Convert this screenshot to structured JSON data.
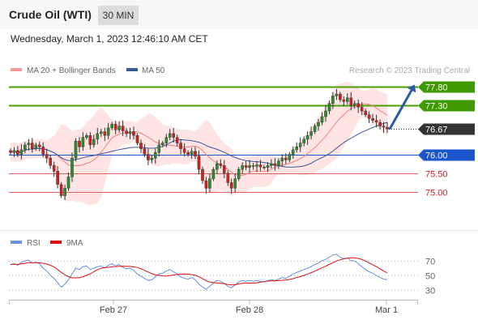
{
  "header": {
    "title": "Crude Oil (WTI)",
    "timeframe": "30 MIN"
  },
  "datetime": "Wednesday, March 1, 2023 12:46:10 AM CET",
  "legend": {
    "bollinger": "MA 20 + Bollinger Bands",
    "ma50": "MA 50",
    "rsi": "RSI",
    "ma9": "9MA"
  },
  "credit": "Research © 2023 Trading Central",
  "colors": {
    "up": "#2e8b2e",
    "down": "#cc2222",
    "bands": "#ffd9d9",
    "ma20": "#f08080",
    "ma50": "#3a5a9a",
    "rsi": "#6a8fdc",
    "ma9": "#dd1111",
    "resistance": "#4aa000",
    "pivot": "#1a55cc",
    "support": "#e06060",
    "current": "#333333",
    "arrow": "#2a5aa8"
  },
  "chart_data": {
    "type": "candlestick",
    "x_ticks": [
      "Feb 27",
      "Feb 28",
      "Mar 1"
    ],
    "price_range": [
      74.4,
      78.1
    ],
    "levels": [
      {
        "label": "77.80",
        "value": 77.8,
        "kind": "resistance"
      },
      {
        "label": "77.30",
        "value": 77.3,
        "kind": "resistance"
      },
      {
        "label": "76.67",
        "value": 76.67,
        "kind": "current"
      },
      {
        "label": "76.00",
        "value": 76.0,
        "kind": "pivot"
      },
      {
        "label": "75.50",
        "value": 75.5,
        "kind": "support"
      },
      {
        "label": "75.00",
        "value": 75.0,
        "kind": "support"
      }
    ],
    "closes": [
      76.05,
      76.1,
      76.0,
      76.12,
      76.25,
      76.3,
      76.15,
      76.25,
      76.2,
      76.0,
      75.9,
      75.7,
      75.55,
      75.2,
      74.9,
      75.1,
      75.4,
      75.9,
      76.35,
      76.2,
      76.45,
      76.5,
      76.25,
      76.4,
      76.55,
      76.6,
      76.5,
      76.7,
      76.8,
      76.65,
      76.75,
      76.62,
      76.55,
      76.6,
      76.5,
      76.3,
      76.15,
      76.0,
      75.85,
      75.9,
      76.05,
      76.25,
      76.3,
      76.45,
      76.55,
      76.45,
      76.3,
      76.15,
      76.05,
      76.0,
      76.08,
      75.95,
      75.6,
      75.3,
      75.1,
      75.35,
      75.6,
      75.75,
      75.7,
      75.5,
      75.25,
      75.1,
      75.35,
      75.6,
      75.7,
      75.65,
      75.7,
      75.68,
      75.72,
      75.66,
      75.65,
      75.7,
      75.75,
      75.7,
      75.82,
      75.9,
      75.85,
      76.0,
      76.12,
      76.2,
      76.3,
      76.4,
      76.5,
      76.6,
      76.75,
      76.85,
      77.0,
      77.15,
      77.35,
      77.55,
      77.6,
      77.45,
      77.4,
      77.5,
      77.3,
      77.35,
      77.25,
      77.15,
      77.05,
      76.95,
      76.9,
      76.85,
      76.75,
      76.72,
      76.67
    ],
    "ma20_end": 76.85,
    "ma50_end": 76.4,
    "rsi_axis": [
      30,
      50,
      70
    ],
    "rsi": [
      65,
      66,
      64,
      68,
      70,
      71,
      67,
      68,
      66,
      60,
      56,
      50,
      46,
      40,
      34,
      38,
      44,
      52,
      60,
      58,
      62,
      63,
      58,
      60,
      62,
      63,
      60,
      64,
      66,
      63,
      65,
      61,
      59,
      60,
      57,
      52,
      49,
      46,
      43,
      44,
      48,
      52,
      53,
      56,
      58,
      55,
      52,
      48,
      46,
      45,
      47,
      44,
      38,
      34,
      31,
      35,
      40,
      43,
      42,
      39,
      35,
      33,
      37,
      41,
      43,
      42,
      43,
      42,
      43,
      42,
      41,
      43,
      44,
      43,
      45,
      47,
      46,
      49,
      52,
      54,
      56,
      58,
      60,
      62,
      65,
      67,
      70,
      72,
      75,
      78,
      79,
      75,
      73,
      74,
      70,
      70,
      66,
      62,
      58,
      55,
      53,
      50,
      47,
      45,
      44
    ],
    "ma9_end": 48
  }
}
